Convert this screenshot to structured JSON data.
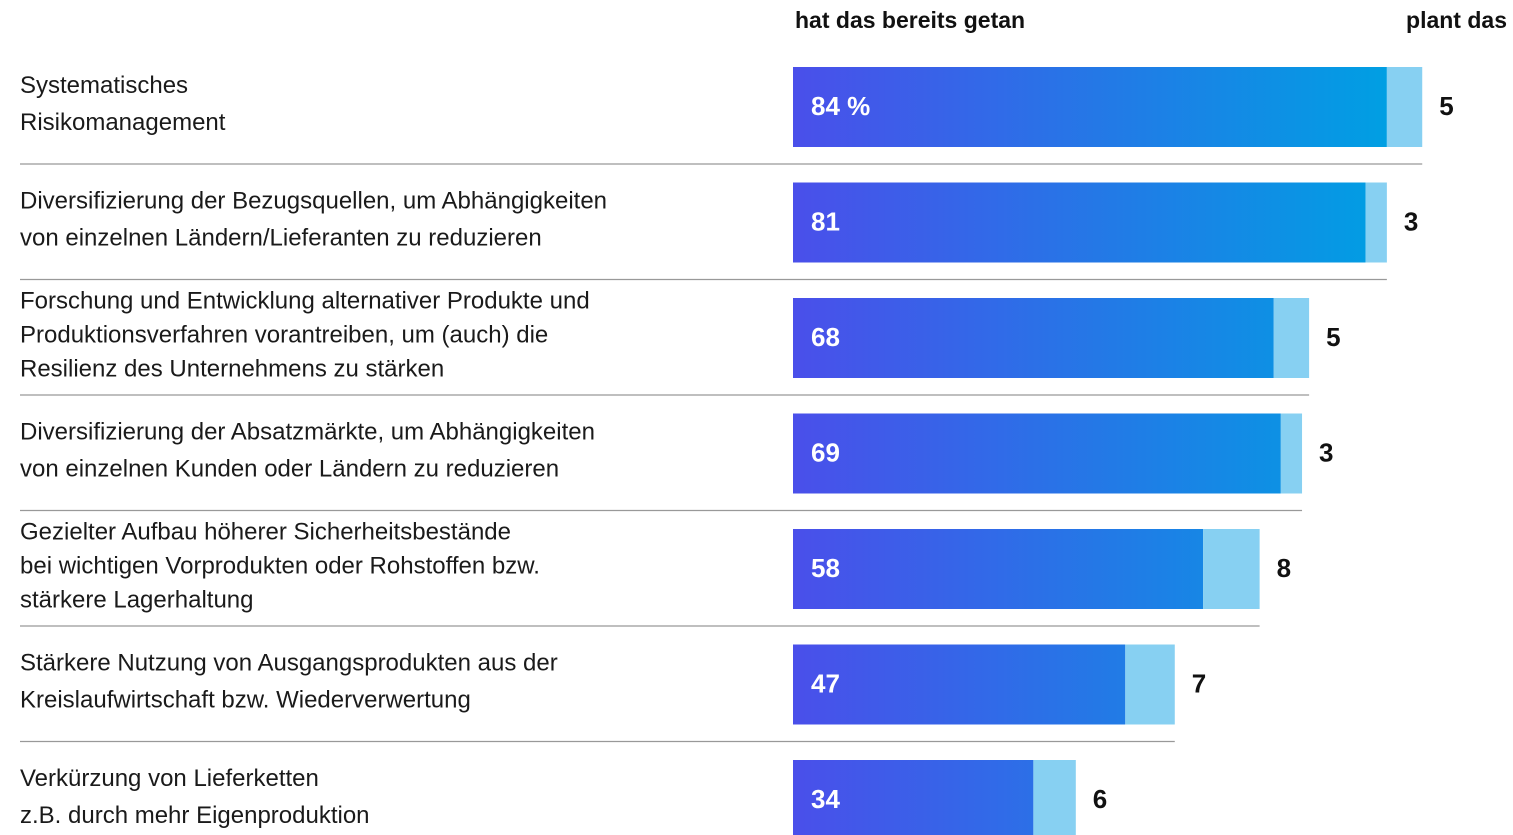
{
  "chart_data": {
    "type": "stacked-bar-horizontal",
    "categories": [
      [
        "Systematisches",
        "Risikomanagement"
      ],
      [
        "Diversifizierung der Bezugsquellen, um Abhängigkeiten",
        "von einzelnen Ländern/Lieferanten zu reduzieren"
      ],
      [
        "Forschung und Entwicklung alternativer Produkte und",
        "Produktionsverfahren vorantreiben, um (auch) die",
        "Resilienz des Unternehmens zu stärken"
      ],
      [
        "Diversifizierung der Absatzmärkte, um Abhängigkeiten",
        "von einzelnen Kunden oder Ländern zu reduzieren"
      ],
      [
        "Gezielter Aufbau höherer Sicherheitsbestände",
        "bei wichtigen Vorprodukten oder Rohstoffen bzw.",
        "stärkere Lagerhaltung"
      ],
      [
        "Stärkere Nutzung von Ausgangsprodukten aus der",
        "Kreislaufwirtschaft bzw. Wiederverwertung"
      ],
      [
        "Verkürzung von Lieferketten",
        "z.B. durch mehr Eigenproduktion"
      ]
    ],
    "series": [
      {
        "name": "hat das bereits getan",
        "color": [
          "#4a4fea",
          "#009fe3"
        ],
        "values": [
          84,
          81,
          68,
          69,
          58,
          47,
          34
        ],
        "value_labels": [
          "84 %",
          "81",
          "68",
          "69",
          "58",
          "47",
          "34"
        ]
      },
      {
        "name": "plant das",
        "color": "#87d0f2",
        "values": [
          5,
          3,
          5,
          3,
          8,
          7,
          6
        ]
      }
    ]
  }
}
